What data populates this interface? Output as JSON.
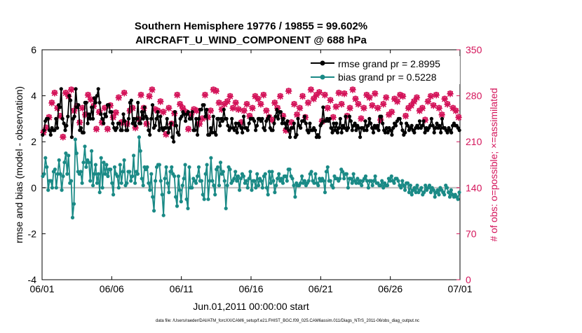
{
  "chart_data": {
    "type": "line",
    "title_line1": "Southern Hemisphere 19776 / 19855 = 99.602%",
    "title_line2": "AIRCRAFT_U_WIND_COMPONENT @ 688 hPa",
    "xlabel": "Jun.01,2011 00:00:00 start",
    "ylabel_left": "rmse and bias (model - observation)",
    "ylabel_right": "# of obs: o=possible; ×=assimilated",
    "footer": "data file: /Users/raeder/DAI/ATM_forcXX/CAM6_setup/f.e21.FHIST_BGC.f09_025.CAM6assim.011/Diags_NTrS_2011-06/obs_diag_output.nc",
    "x_ticks": [
      "06/01",
      "06/06",
      "06/11",
      "06/16",
      "06/21",
      "06/26",
      "07/01"
    ],
    "ylim_left": [
      -4,
      6
    ],
    "y_ticks_left": [
      "-4",
      "-2",
      "0",
      "2",
      "4",
      "6"
    ],
    "ylim_right": [
      0,
      350
    ],
    "y_ticks_right": [
      "0",
      "70",
      "140",
      "210",
      "280",
      "350"
    ],
    "x_range_days": [
      0,
      30
    ],
    "colors": {
      "rmse": "#000000",
      "bias": "#1a8a86",
      "obs": "#d4145a",
      "zero_line": "#bbbbbb",
      "legend_text": "#1f4fd0"
    },
    "series": [
      {
        "name": "rmse grand pr = 2.8995",
        "label": "rmse grand pr = 2.8995",
        "values": [
          2.3,
          2.5,
          2.9,
          3.0,
          3.0,
          2.5,
          2.3,
          2.6,
          2.5,
          2.5,
          3.0,
          2.6,
          3.6,
          3.5,
          4.3,
          3.0,
          2.8,
          2.5,
          2.7,
          3.1,
          4.0,
          3.8,
          2.2,
          3.0,
          3.1,
          4.3,
          3.5,
          3.6,
          2.5,
          2.6,
          2.4,
          2.4,
          3.7,
          3.7,
          2.8,
          3.2,
          3.0,
          3.5,
          3.0,
          3.9,
          3.7,
          4.0,
          4.3,
          3.7,
          3.2,
          3.0,
          2.8,
          3.2,
          3.1,
          3.6,
          3.6,
          3.3,
          3.3,
          2.8,
          2.6,
          2.5,
          2.6,
          2.8,
          2.8,
          2.5,
          2.5,
          3.2,
          2.9,
          2.5,
          2.5,
          3.0,
          3.7,
          3.8,
          2.8,
          3.0,
          2.7,
          3.0,
          3.7,
          2.8,
          2.8,
          3.3,
          3.0,
          3.5,
          3.1,
          3.0,
          2.5,
          2.3,
          3.0,
          3.6,
          2.6,
          2.7,
          3.0,
          3.3,
          2.5,
          3.1,
          2.6,
          2.5,
          2.6,
          2.6,
          3.0,
          2.4,
          2.6,
          2.8,
          2.2,
          2.0,
          3.3,
          2.7,
          2.4,
          2.3,
          3.0,
          3.1,
          3.3,
          3.2,
          2.9,
          3.2,
          3.3,
          3.0,
          3.0,
          3.3,
          2.5,
          2.5,
          3.0,
          2.3,
          3.0,
          3.4,
          3.4,
          3.6,
          3.6,
          3.1,
          3.4,
          2.3,
          2.3,
          2.6,
          2.4,
          3.1,
          2.4,
          2.3,
          3.0,
          3.0,
          2.7,
          3.0,
          2.9,
          3.4,
          3.0,
          3.0,
          2.7,
          2.5,
          2.6,
          3.0,
          2.6,
          2.5,
          2.8,
          2.4,
          2.8,
          2.7,
          2.6,
          2.4,
          3.1,
          2.6,
          2.6,
          2.5,
          2.8,
          3.0,
          3.0,
          3.0,
          2.9,
          2.5,
          2.7,
          3.0,
          3.0,
          2.9,
          3.0,
          2.6,
          2.5,
          2.9,
          3.0,
          3.1,
          2.6,
          2.5,
          2.5,
          2.8,
          3.1,
          3.4,
          3.0,
          3.3,
          3.3,
          2.8,
          3.0,
          2.8,
          2.6,
          2.9,
          2.5,
          2.2,
          2.6,
          2.6,
          2.8,
          2.2,
          2.3,
          3.0,
          2.7,
          2.6,
          2.9,
          2.9,
          3.1,
          2.8,
          2.5,
          2.4,
          2.8,
          2.5,
          2.5,
          2.6,
          2.5,
          2.2,
          2.3,
          2.2,
          2.7,
          2.8,
          3.5,
          2.9,
          2.9,
          3.0,
          2.9,
          3.0,
          2.6,
          2.4,
          2.8,
          2.5,
          2.8,
          2.4,
          2.6,
          3.0,
          2.4,
          2.7,
          2.6,
          3.1,
          2.5,
          2.6,
          3.1,
          2.9,
          2.5,
          2.7,
          2.8,
          2.5,
          2.7,
          2.6,
          2.2,
          2.6,
          2.6,
          2.5,
          2.9,
          2.5,
          2.7,
          3.0,
          2.8,
          2.6,
          2.4,
          2.7,
          2.6,
          2.7,
          2.5,
          3.1,
          3.1,
          2.8,
          2.5,
          2.4,
          2.6,
          2.4,
          2.6,
          2.5,
          2.3,
          2.6,
          2.8,
          2.7,
          2.9,
          3.0,
          3.0,
          2.8,
          2.5,
          2.3,
          2.4,
          2.8,
          2.7,
          2.5,
          2.6,
          2.7,
          2.5,
          2.4,
          2.6,
          2.7,
          2.6,
          2.9,
          2.6,
          2.7,
          2.9,
          2.4,
          2.6,
          2.5,
          2.6,
          2.7,
          3.0,
          2.7,
          2.4,
          2.6,
          2.8,
          2.6,
          2.7,
          2.4,
          3.0,
          2.6,
          2.6,
          2.5,
          2.4,
          2.6,
          2.5,
          2.4,
          2.7,
          2.8,
          2.7,
          2.7,
          2.6,
          2.5
        ]
      },
      {
        "name": "bias grand pr = 0.5228",
        "label": "bias grand pr = 0.5228",
        "values": [
          0.5,
          0.6,
          1.3,
          0.9,
          -0.1,
          0.3,
          0.3,
          0.0,
          0.7,
          0.8,
          0.0,
          0.6,
          1.2,
          0.6,
          -0.1,
          0.5,
          1.1,
          1.5,
          0.6,
          1.4,
          0.2,
          0.3,
          -1.3,
          -0.7,
          2.1,
          1.5,
          0.7,
          0.6,
          0.7,
          0.2,
          1.1,
          1.8,
          0.9,
          1.2,
          1.1,
          0.3,
          1.6,
          0.1,
          0.6,
          1.0,
          0.2,
          0.6,
          -0.2,
          1.3,
          0.0,
          1.1,
          0.6,
          1.0,
          0.5,
          0.8,
          0.8,
          0.2,
          -0.3,
          0.9,
          0.6,
          0.5,
          0.0,
          1.0,
          0.2,
          0.7,
          1.2,
          0.1,
          0.2,
          0.7,
          0.7,
          0.3,
          0.5,
          1.4,
          0.2,
          0.7,
          0.6,
          2.2,
          1.6,
          0.4,
          0.1,
          0.9,
          0.8,
          0.9,
          0.2,
          -0.1,
          0.6,
          -0.4,
          -1.0,
          0.3,
          0.9,
          1.0,
          1.0,
          0.3,
          -0.3,
          -1.2,
          0.4,
          0.9,
          0.2,
          -0.2,
          0.7,
          0.9,
          0.6,
          0.5,
          -0.4,
          -0.8,
          0.5,
          -0.1,
          -0.6,
          0.1,
          0.4,
          1.0,
          -0.5,
          -0.9,
          0.9,
          0.0,
          0.0,
          0.4,
          0.3,
          0.2,
          0.5,
          0.9,
          0.3,
          0.3,
          -0.3,
          -0.5,
          0.6,
          1.0,
          -0.5,
          0.3,
          1.3,
          0.3,
          0.1,
          -0.3,
          0.8,
          0.9,
          0.1,
          1.1,
          0.6,
          0.7,
          0.3,
          -0.9,
          0.1,
          0.9,
          0.8,
          0.2,
          0.3,
          0.4,
          0.7,
          0.3,
          0.5,
          -0.1,
          0.4,
          0.6,
          0.5,
          0.2,
          0.3,
          0.0,
          0.4,
          0.7,
          -0.1,
          0.3,
          0.3,
          0.0,
          0.6,
          0.1,
          0.4,
          0.3,
          0.0,
          0.5,
          0.6,
          0.0,
          -0.3,
          0.7,
          0.2,
          0.7,
          0.3,
          -0.2,
          0.1,
          0.4,
          0.6,
          0.3,
          0.4,
          0.2,
          0.5,
          0.5,
          0.3,
          0.8,
          0.8,
          0.5,
          0.4,
          0.1,
          -0.4,
          0.2,
          0.1,
          0.1,
          0.2,
          0.5,
          0.2,
          0.3,
          0.1,
          0.2,
          0.3,
          0.6,
          0.7,
          0.3,
          0.2,
          0.6,
          0.2,
          0.1,
          0.4,
          0.3,
          0.4,
          0.3,
          -0.2,
          0.7,
          0.9,
          0.3,
          0.3,
          0.1,
          0.0,
          0.5,
          0.4,
          0.4,
          0.3,
          0.4,
          0.8,
          0.7,
          0.4,
          0.6,
          0.6,
          0.0,
          0.4,
          0.4,
          0.2,
          0.6,
          0.3,
          0.2,
          0.4,
          0.2,
          0.3,
          0.1,
          0.3,
          0.4,
          0.5,
          0.3,
          0.0,
          0.3,
          0.3,
          0.1,
          0.3,
          0.5,
          0.2,
          0.2,
          0.1,
          0.1,
          0.3,
          0.0,
          0.2,
          0.1,
          0.1,
          0.4,
          0.3,
          0.5,
          0.3,
          0.2,
          0.4,
          0.4,
          0.3,
          0.1,
          0.0,
          0.3,
          0.1,
          -0.1,
          0.2,
          0.2,
          -0.2,
          0.1,
          -0.3,
          -0.1,
          0.0,
          -0.2,
          0.1,
          -0.2,
          -0.1,
          0.0,
          -0.3,
          -0.2,
          0.1,
          -0.1,
          0.0,
          0.1,
          -0.2,
          0.0,
          -0.1,
          -0.4,
          -0.2,
          -0.1,
          -0.3,
          0.0,
          -0.1,
          -0.2,
          -0.3,
          0.1,
          0.0,
          -0.2,
          -0.4,
          -0.1,
          -0.3,
          -0.4,
          -0.3,
          -0.4,
          -0.5,
          -0.2
        ]
      }
    ],
    "obs_possible": [
      225,
      232,
      248,
      270,
      285,
      262,
      250,
      218,
      285,
      280,
      290,
      258,
      265,
      240,
      262,
      252,
      282,
      275,
      265,
      230,
      256,
      240,
      262,
      230,
      266,
      248,
      255,
      278,
      240,
      285,
      238,
      258,
      262,
      232,
      245,
      282,
      262,
      238,
      280,
      290,
      260,
      258,
      272,
      256,
      222,
      262,
      238,
      254,
      282,
      268,
      262,
      256,
      230,
      252,
      260,
      258,
      238,
      246,
      282,
      248,
      258,
      290,
      288,
      270,
      260,
      268,
      272,
      280,
      262,
      270,
      260,
      240,
      258,
      268,
      250,
      262,
      280,
      276,
      268,
      282,
      258,
      248,
      244,
      270,
      262,
      280,
      250,
      228,
      288,
      240,
      268,
      252,
      262,
      280,
      248,
      270,
      290,
      276,
      282,
      286,
      242,
      282,
      262,
      274,
      248,
      264,
      285,
      268,
      284,
      250,
      262,
      290,
      276,
      268,
      246,
      262,
      282,
      278,
      266,
      284,
      262,
      244,
      268,
      278,
      252,
      256,
      276,
      272,
      282,
      280,
      250,
      262,
      266,
      272,
      278,
      258,
      262,
      244,
      272,
      280,
      266,
      282,
      262,
      252,
      276,
      268,
      284,
      262,
      258,
      248
    ],
    "obs_assimilated": [
      224,
      231,
      247,
      269,
      284,
      261,
      249,
      217,
      284,
      279,
      289,
      257,
      264,
      239,
      261,
      251,
      281,
      274,
      264,
      229,
      255,
      239,
      261,
      229,
      265,
      247,
      254,
      277,
      239,
      284,
      237,
      257,
      261,
      231,
      244,
      281,
      261,
      237,
      279,
      289,
      259,
      257,
      271,
      255,
      221,
      261,
      237,
      253,
      281,
      267,
      261,
      255,
      229,
      251,
      259,
      257,
      237,
      245,
      281,
      247,
      257,
      289,
      287,
      269,
      259,
      267,
      271,
      279,
      261,
      269,
      259,
      239,
      257,
      267,
      249,
      261,
      279,
      275,
      267,
      281,
      257,
      247,
      243,
      269,
      261,
      279,
      249,
      227,
      287,
      239,
      267,
      251,
      261,
      279,
      247,
      269,
      289,
      275,
      281,
      285,
      241,
      281,
      261,
      273,
      247,
      263,
      284,
      267,
      283,
      249,
      261,
      289,
      275,
      267,
      245,
      261,
      281,
      277,
      265,
      283,
      261,
      243,
      267,
      277,
      251,
      255,
      275,
      271,
      281,
      279,
      249,
      261,
      265,
      271,
      277,
      257,
      261,
      243,
      271,
      279,
      265,
      281,
      261,
      251,
      275,
      267,
      283,
      261,
      257,
      247
    ]
  }
}
